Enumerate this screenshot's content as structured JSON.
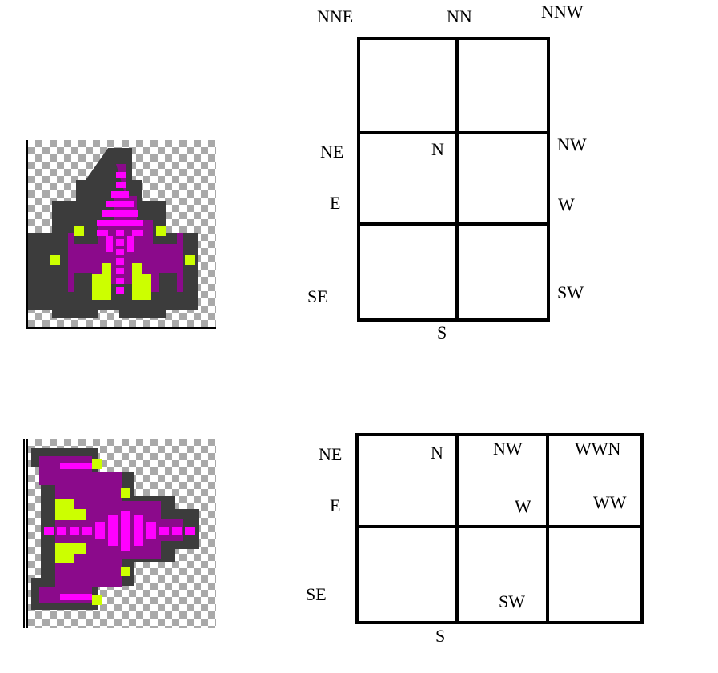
{
  "top_diagram": {
    "labels": {
      "nne": "NNE",
      "nn": "NN",
      "nnw": "NNW",
      "ne": "NE",
      "n": "N",
      "nw": "NW",
      "e": "E",
      "w": "W",
      "se": "SE",
      "sw": "SW",
      "s": "S"
    }
  },
  "bottom_diagram": {
    "labels": {
      "ne": "NE",
      "n": "N",
      "nw": "NW",
      "wwn": "WWN",
      "e": "E",
      "w": "W",
      "ww": "WW",
      "se": "SE",
      "sw": "SW",
      "s": "S"
    }
  },
  "sprites": {
    "top": {
      "icon": "purple-spaceship-facing-up",
      "colors": {
        "hull": "#8b0a8b",
        "highlight": "#ff00ff",
        "engine": "#ccff00",
        "outline": "#3c3c3c"
      }
    },
    "bottom": {
      "icon": "purple-spaceship-facing-right",
      "colors": {
        "hull": "#8b0a8b",
        "highlight": "#ff00ff",
        "engine": "#ccff00",
        "outline": "#3c3c3c"
      }
    }
  }
}
